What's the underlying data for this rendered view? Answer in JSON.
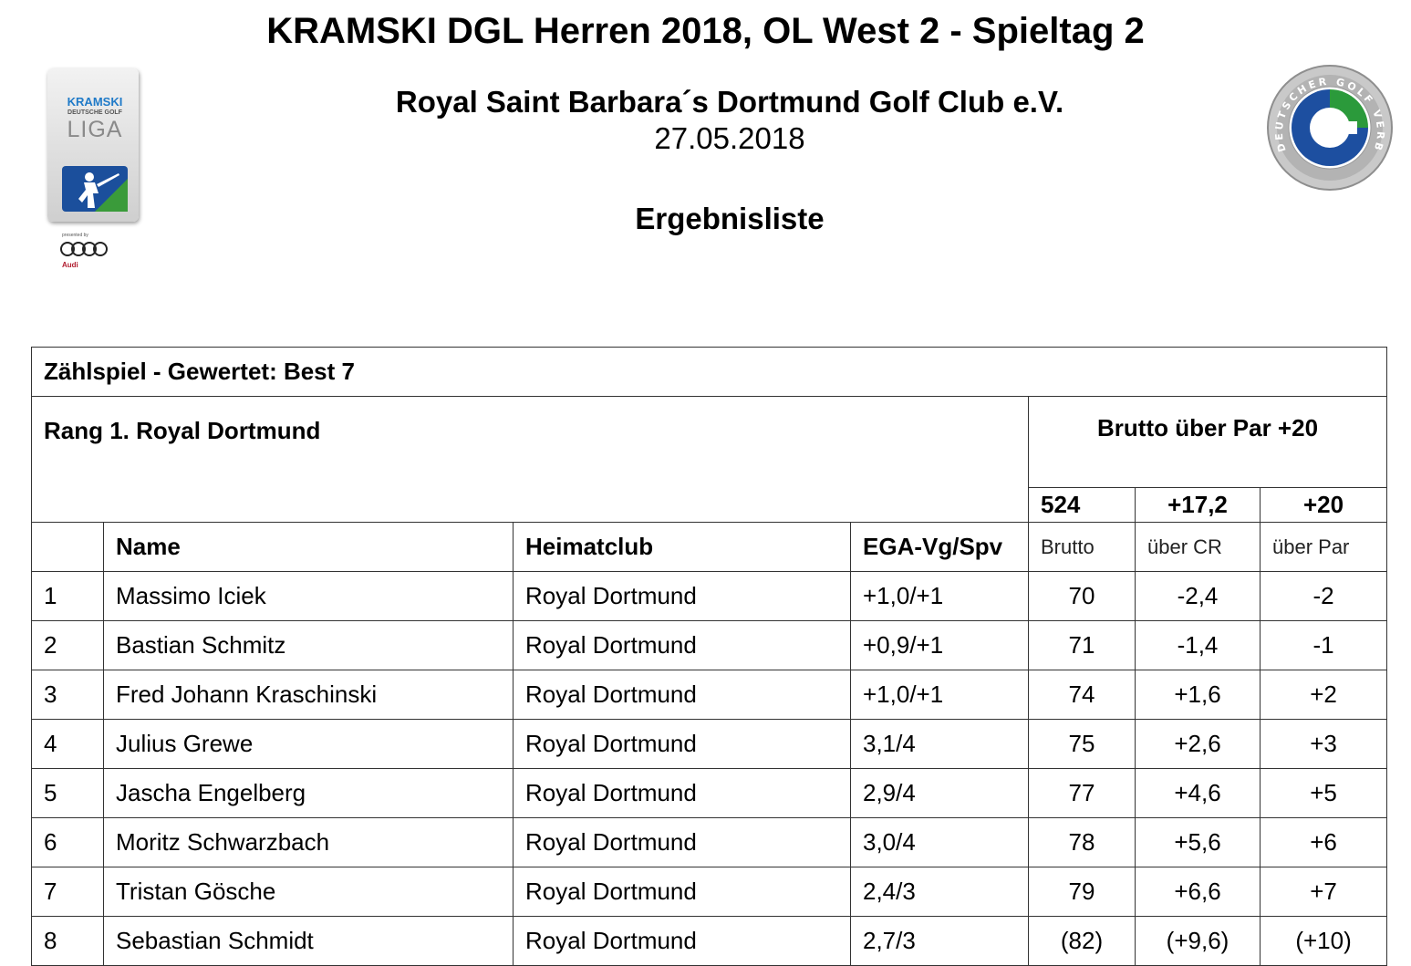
{
  "title": "KRAMSKI DGL Herren 2018, OL West 2 - Spieltag 2",
  "subtitle": "Royal Saint Barbara´s Dortmund Golf Club e.V.",
  "date": "27.05.2018",
  "heading": "Ergebnisliste",
  "logo_left": {
    "brand": "KRAMSKI",
    "line": "DEUTSCHE GOLF",
    "word": "LIGA",
    "presented": "presented by",
    "sponsor": "Audi"
  },
  "logo_right": {
    "letter": "G",
    "ring_text": "DEUTSCHER GOLF VERBAND"
  },
  "table": {
    "mode": "Zählspiel - Gewertet: Best 7",
    "team_rank": "Rang 1. Royal Dortmund",
    "team_summary": "Brutto über Par +20",
    "totals": {
      "brutto": "524",
      "cr": "+17,2",
      "par": "+20"
    },
    "headers": {
      "rank": "",
      "name": "Name",
      "club": "Heimatclub",
      "hcp": "EGA-Vg/Spv",
      "brutto": "Brutto",
      "cr": "über CR",
      "par": "über Par"
    },
    "rows": [
      {
        "rank": "1",
        "name": "Massimo Iciek",
        "club": "Royal Dortmund",
        "hcp": "+1,0/+1",
        "brutto": "70",
        "cr": "-2,4",
        "par": "-2"
      },
      {
        "rank": "2",
        "name": "Bastian Schmitz",
        "club": "Royal Dortmund",
        "hcp": "+0,9/+1",
        "brutto": "71",
        "cr": "-1,4",
        "par": "-1"
      },
      {
        "rank": "3",
        "name": "Fred Johann Kraschinski",
        "club": "Royal Dortmund",
        "hcp": "+1,0/+1",
        "brutto": "74",
        "cr": "+1,6",
        "par": "+2"
      },
      {
        "rank": "4",
        "name": "Julius Grewe",
        "club": "Royal Dortmund",
        "hcp": "3,1/4",
        "brutto": "75",
        "cr": "+2,6",
        "par": "+3"
      },
      {
        "rank": "5",
        "name": "Jascha Engelberg",
        "club": "Royal Dortmund",
        "hcp": "2,9/4",
        "brutto": "77",
        "cr": "+4,6",
        "par": "+5"
      },
      {
        "rank": "6",
        "name": "Moritz Schwarzbach",
        "club": "Royal Dortmund",
        "hcp": "3,0/4",
        "brutto": "78",
        "cr": "+5,6",
        "par": "+6"
      },
      {
        "rank": "7",
        "name": "Tristan Gösche",
        "club": "Royal Dortmund",
        "hcp": "2,4/3",
        "brutto": "79",
        "cr": "+6,6",
        "par": "+7"
      },
      {
        "rank": "8",
        "name": "Sebastian Schmidt",
        "club": "Royal Dortmund",
        "hcp": "2,7/3",
        "brutto": "(82)",
        "cr": "(+9,6)",
        "par": "(+10)"
      }
    ]
  }
}
